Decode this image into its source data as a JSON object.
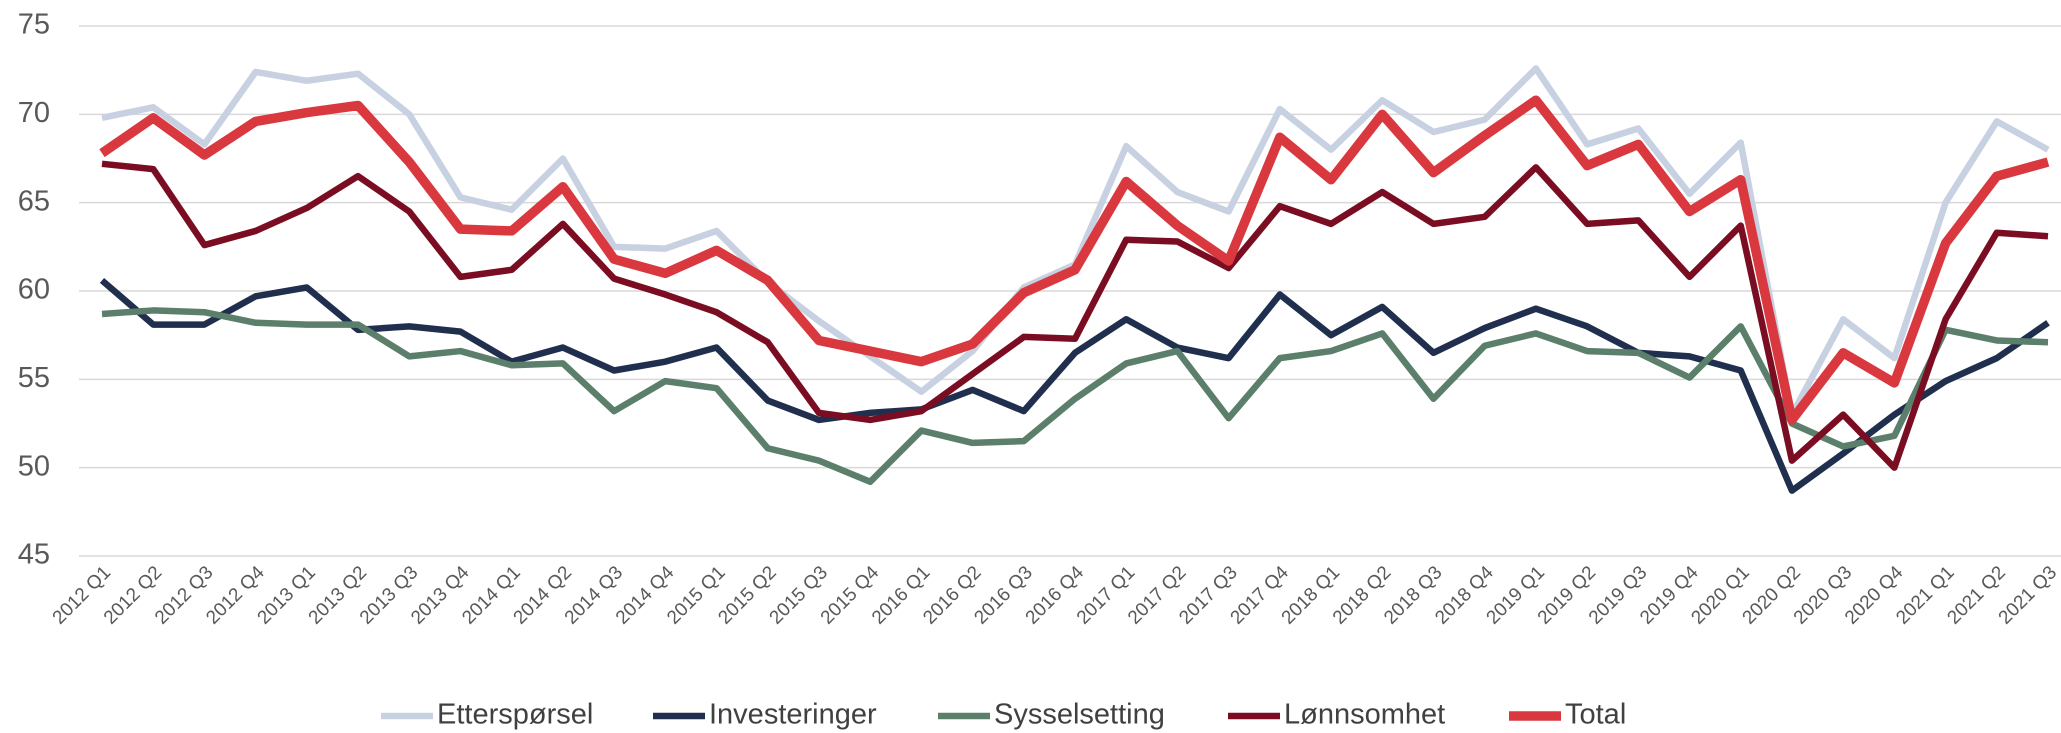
{
  "chart_data": {
    "type": "line",
    "categories": [
      "2012 Q1",
      "2012 Q2",
      "2012 Q3",
      "2012 Q4",
      "2013 Q1",
      "2013 Q2",
      "2013 Q3",
      "2013 Q4",
      "2014 Q1",
      "2014 Q2",
      "2014 Q3",
      "2014 Q4",
      "2015 Q1",
      "2015 Q2",
      "2015 Q3",
      "2015 Q4",
      "2016 Q1",
      "2016 Q2",
      "2016 Q3",
      "2016 Q4",
      "2017 Q1",
      "2017 Q2",
      "2017 Q3",
      "2017 Q4",
      "2018 Q1",
      "2018 Q2",
      "2018 Q3",
      "2018 Q4",
      "2019 Q1",
      "2019 Q2",
      "2019 Q3",
      "2019 Q4",
      "2020 Q1",
      "2020 Q2",
      "2020 Q3",
      "2020 Q4",
      "2021 Q1",
      "2021 Q2",
      "2021 Q3"
    ],
    "series": [
      {
        "name": "Etterspørsel",
        "color": "#c8d1e1",
        "values": [
          69.8,
          70.4,
          68.3,
          72.4,
          71.9,
          72.3,
          70.0,
          65.3,
          64.6,
          67.5,
          62.5,
          62.4,
          63.4,
          60.5,
          58.3,
          56.3,
          54.3,
          56.6,
          60.2,
          61.5,
          68.2,
          65.6,
          64.5,
          70.3,
          68.0,
          70.8,
          69.0,
          69.7,
          72.6,
          68.3,
          69.2,
          65.5,
          68.4,
          53.0,
          58.4,
          56.2,
          65.0,
          69.6,
          68.0
        ]
      },
      {
        "name": "Investeringer",
        "color": "#1f2f4d",
        "values": [
          60.6,
          58.1,
          58.1,
          59.7,
          60.2,
          57.8,
          58.0,
          57.7,
          56.0,
          56.8,
          55.5,
          56.0,
          56.8,
          53.8,
          52.7,
          53.1,
          53.3,
          54.4,
          53.2,
          56.5,
          58.4,
          56.8,
          56.2,
          59.8,
          57.5,
          59.1,
          56.5,
          57.9,
          59.0,
          58.0,
          56.5,
          56.3,
          55.5,
          48.7,
          50.8,
          53.0,
          54.9,
          56.2,
          58.2
        ]
      },
      {
        "name": "Sysselsetting",
        "color": "#5b7f6b",
        "values": [
          58.7,
          58.9,
          58.8,
          58.2,
          58.1,
          58.1,
          56.3,
          56.6,
          55.8,
          55.9,
          53.2,
          54.9,
          54.5,
          51.1,
          50.4,
          49.2,
          52.1,
          51.4,
          51.5,
          53.9,
          55.9,
          56.6,
          52.8,
          56.2,
          56.6,
          57.6,
          53.9,
          56.9,
          57.6,
          56.6,
          56.5,
          55.1,
          58.0,
          52.5,
          51.2,
          51.8,
          57.8,
          57.2,
          57.1
        ]
      },
      {
        "name": "Lønnsomhet",
        "color": "#7b0d22",
        "values": [
          67.2,
          66.9,
          62.6,
          63.4,
          64.7,
          66.5,
          64.5,
          60.8,
          61.2,
          63.8,
          60.7,
          59.8,
          58.8,
          57.1,
          53.1,
          52.7,
          53.2,
          55.3,
          57.4,
          57.3,
          62.9,
          62.8,
          61.3,
          64.8,
          63.8,
          65.6,
          63.8,
          64.2,
          67.0,
          63.8,
          64.0,
          60.8,
          63.7,
          50.4,
          53.0,
          50.0,
          58.4,
          63.3,
          63.1
        ]
      },
      {
        "name": "Total",
        "color": "#d9383f",
        "values": [
          67.8,
          69.8,
          67.7,
          69.6,
          70.1,
          70.5,
          67.3,
          63.5,
          63.4,
          65.9,
          61.8,
          61.0,
          62.3,
          60.6,
          57.2,
          56.6,
          56.0,
          57.0,
          59.9,
          61.2,
          66.2,
          63.7,
          61.7,
          68.7,
          66.3,
          70.0,
          66.7,
          68.8,
          70.8,
          67.1,
          68.3,
          64.5,
          66.3,
          52.7,
          56.5,
          54.8,
          62.7,
          66.5,
          67.3
        ]
      }
    ],
    "ylim": [
      45,
      75
    ],
    "yticks": [
      45,
      50,
      55,
      60,
      65,
      70,
      75
    ],
    "grid": true,
    "legend": "bottom"
  }
}
